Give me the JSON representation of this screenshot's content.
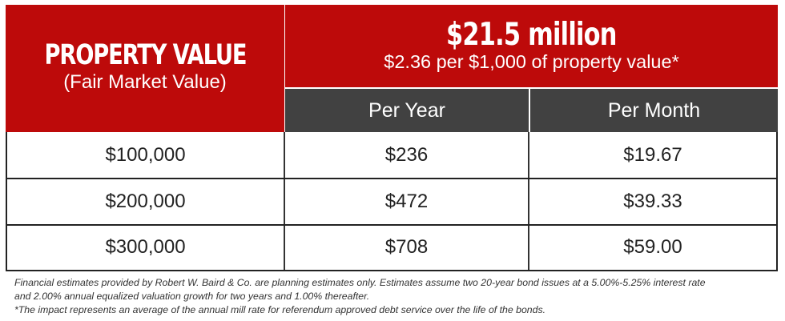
{
  "header": {
    "left_title": "PROPERTY VALUE",
    "left_subtitle": "(Fair Market Value)",
    "amount": "$21.5 million",
    "rate": "$2.36 per $1,000 of property value*",
    "columns": [
      "Per Year",
      "Per Month"
    ]
  },
  "rows": [
    {
      "property_value": "$100,000",
      "per_year": "$236",
      "per_month": "$19.67"
    },
    {
      "property_value": "$200,000",
      "per_year": "$472",
      "per_month": "$39.33"
    },
    {
      "property_value": "$300,000",
      "per_year": "$708",
      "per_month": "$59.00"
    }
  ],
  "notes": {
    "line1": "Financial estimates provided by Robert W. Baird & Co. are planning estimates only. Estimates assume two 20-year bond issues at a 5.00%-5.25% interest rate",
    "line2": "and 2.00% annual equalized valuation growth for two years and 1.00% thereafter.",
    "line3": "*The impact represents an average of the annual mill rate for referendum approved debt service over the life of the bonds."
  },
  "colors": {
    "header_red": "#bd0a0a",
    "subheader_dark": "#414141",
    "text": "#222222"
  }
}
